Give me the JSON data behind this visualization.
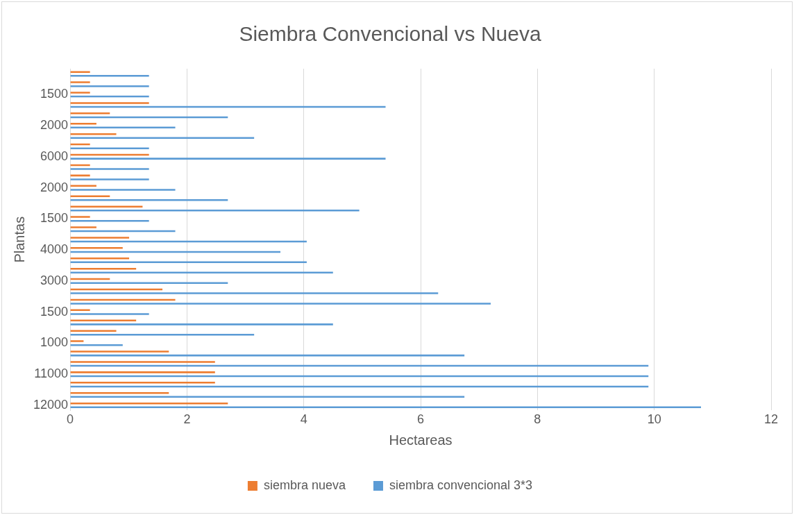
{
  "chart_data": {
    "type": "bar",
    "orientation": "horizontal",
    "title": "Siembra Convencional vs Nueva",
    "xlabel": "Hectareas",
    "ylabel": "Plantas",
    "categories": [
      null,
      null,
      "1500",
      null,
      null,
      "2000",
      null,
      null,
      "6000",
      null,
      null,
      "2000",
      null,
      null,
      "1500",
      null,
      null,
      "4000",
      null,
      null,
      "3000",
      null,
      null,
      "1500",
      null,
      null,
      "1000",
      null,
      null,
      "11000",
      null,
      null,
      "12000"
    ],
    "series": [
      {
        "name": "siembra nueva",
        "color": "#ed7d31",
        "values": [
          0.34,
          0.34,
          0.34,
          1.35,
          0.68,
          0.45,
          0.79,
          0.34,
          1.35,
          0.34,
          0.34,
          0.45,
          0.68,
          1.24,
          0.34,
          0.45,
          1.01,
          0.9,
          1.01,
          1.13,
          0.68,
          1.58,
          1.8,
          0.34,
          1.13,
          0.79,
          0.23,
          1.69,
          2.48,
          2.48,
          2.48,
          1.69,
          2.7
        ]
      },
      {
        "name": "siembra convencional 3*3",
        "color": "#5b9bd5",
        "values": [
          1.35,
          1.35,
          1.35,
          5.4,
          2.7,
          1.8,
          3.15,
          1.35,
          5.4,
          1.35,
          1.35,
          1.8,
          2.7,
          4.95,
          1.35,
          1.8,
          4.05,
          3.6,
          4.05,
          4.5,
          2.7,
          6.3,
          7.2,
          1.35,
          4.5,
          3.15,
          0.9,
          6.75,
          9.9,
          9.9,
          9.9,
          6.75,
          10.8
        ]
      }
    ],
    "xlim": [
      0,
      12
    ],
    "xticks": [
      0,
      2,
      4,
      6,
      8,
      10,
      12
    ],
    "grid": "x",
    "legend": "bottom"
  }
}
